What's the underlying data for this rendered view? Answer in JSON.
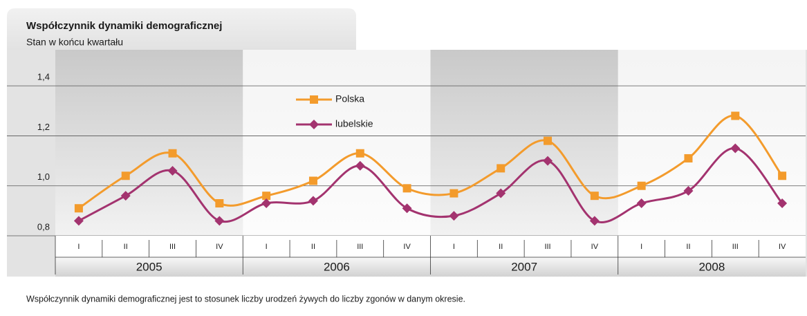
{
  "chart_data": {
    "type": "line",
    "title": "Współczynnik dynamiki demograficznej",
    "subtitle": "Stan w końcu kwartału",
    "note": "Współczynnik dynamiki demograficznej jest to stosunek liczby urodzeń żywych do liczby zgonów w danym okresie.",
    "categories": [
      "I",
      "II",
      "III",
      "IV",
      "I",
      "II",
      "III",
      "IV",
      "I",
      "II",
      "III",
      "IV",
      "I",
      "II",
      "III",
      "IV"
    ],
    "years": [
      "2005",
      "2006",
      "2007",
      "2008"
    ],
    "series": [
      {
        "name": "Polska",
        "color": "#f39b2c",
        "marker": "square",
        "values": [
          0.91,
          1.04,
          1.13,
          0.93,
          0.96,
          1.02,
          1.13,
          0.99,
          0.97,
          1.07,
          1.18,
          0.96,
          1.0,
          1.11,
          1.28,
          1.04
        ]
      },
      {
        "name": "lubelskie",
        "color": "#a3336f",
        "marker": "diamond",
        "values": [
          0.86,
          0.96,
          1.06,
          0.86,
          0.93,
          0.94,
          1.08,
          0.91,
          0.88,
          0.97,
          1.1,
          0.86,
          0.93,
          0.98,
          1.15,
          0.93
        ]
      }
    ],
    "ylim": [
      0.8,
      1.5
    ],
    "yticks": [
      {
        "value": 0.8,
        "label": "0,8"
      },
      {
        "value": 1.0,
        "label": "1,0"
      },
      {
        "value": 1.2,
        "label": "1,2"
      },
      {
        "value": 1.4,
        "label": "1,4"
      }
    ],
    "grid": true
  }
}
